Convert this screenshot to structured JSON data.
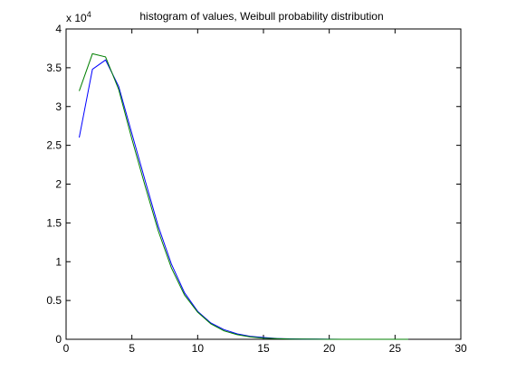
{
  "chart_data": {
    "type": "line",
    "title": "histogram of values, Weibull probability distribution",
    "xlabel": "",
    "ylabel": "",
    "xlim": [
      0,
      30
    ],
    "ylim": [
      0,
      40000
    ],
    "grid": false,
    "xticks": [
      0,
      5,
      10,
      15,
      20,
      25,
      30
    ],
    "yticks": [
      0,
      0.5,
      1,
      1.5,
      2,
      2.5,
      3,
      3.5,
      4
    ],
    "ytick_labels": [
      "0",
      "0.5",
      "1",
      "1.5",
      "2",
      "2.5",
      "3",
      "3.5",
      "4"
    ],
    "y_multiplier": {
      "base": "x 10",
      "exponent": "4"
    },
    "x": [
      1,
      2,
      3,
      4,
      5,
      6,
      7,
      8,
      9,
      10,
      11,
      12,
      13,
      14,
      15,
      16,
      17,
      18,
      19,
      20,
      21,
      22,
      23,
      24,
      25,
      26
    ],
    "series": [
      {
        "color": "#0000ff",
        "values": [
          26000,
          34800,
          36000,
          32600,
          26500,
          20500,
          14600,
          9700,
          6000,
          3600,
          2100,
          1250,
          700,
          380,
          230,
          110,
          60,
          30,
          20,
          10,
          5,
          5,
          3,
          2,
          2,
          0
        ]
      },
      {
        "color": "#007f00",
        "values": [
          32000,
          36800,
          36400,
          32200,
          25800,
          19800,
          14000,
          9200,
          5700,
          3500,
          2000,
          1100,
          600,
          300,
          150,
          80,
          40,
          20,
          10,
          5,
          3,
          2,
          1,
          1,
          0,
          0
        ]
      }
    ]
  }
}
